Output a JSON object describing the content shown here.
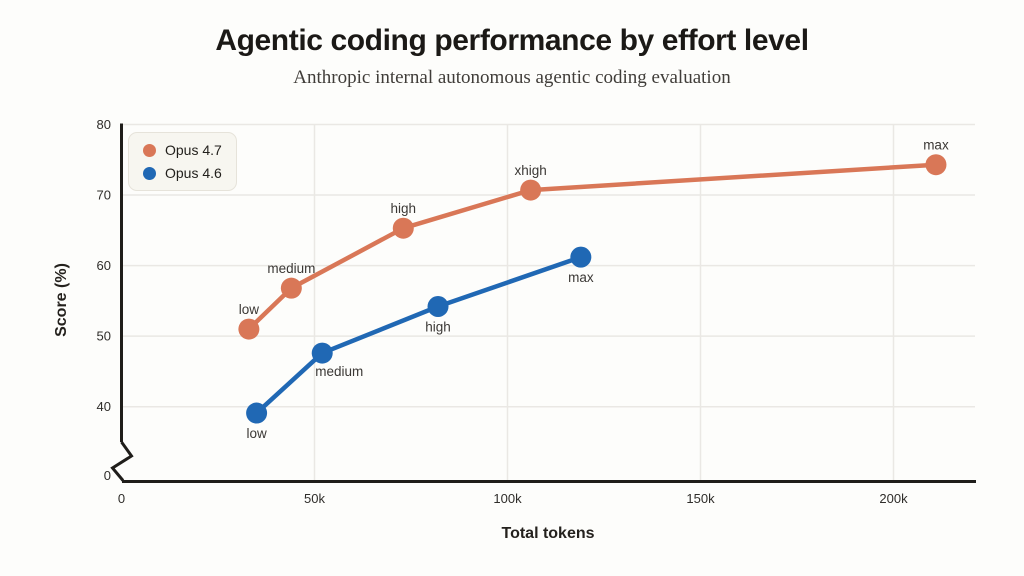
{
  "page": {
    "background": "#fdfdfb"
  },
  "chart_data": {
    "type": "line",
    "title": "Agentic coding performance by effort level",
    "subtitle": "Anthropic internal autonomous agentic coding evaluation",
    "xlabel": "Total tokens",
    "ylabel": "Score (%)",
    "grid": true,
    "legend_position": "top-left",
    "x_axis": {
      "min": 0,
      "max": 221000,
      "ticks": [
        {
          "value": 0,
          "label": "0"
        },
        {
          "value": 50000,
          "label": "50k"
        },
        {
          "value": 100000,
          "label": "100k"
        },
        {
          "value": 150000,
          "label": "150k"
        },
        {
          "value": 200000,
          "label": "200k"
        }
      ]
    },
    "y_axis": {
      "min": 0,
      "max": 80,
      "break_between": [
        0,
        40
      ],
      "ticks": [
        {
          "value": 80,
          "label": "80"
        },
        {
          "value": 70,
          "label": "70"
        },
        {
          "value": 60,
          "label": "60"
        },
        {
          "value": 50,
          "label": "50"
        },
        {
          "value": 40,
          "label": "40"
        },
        {
          "value": 0,
          "label": "0"
        }
      ]
    },
    "series": [
      {
        "name": "Opus 4.7",
        "color": "#d97757",
        "points": [
          {
            "x": 33000,
            "y": 51.0,
            "label": "low",
            "label_pos": "above"
          },
          {
            "x": 44000,
            "y": 56.8,
            "label": "medium",
            "label_pos": "above"
          },
          {
            "x": 73000,
            "y": 65.3,
            "label": "high",
            "label_pos": "above"
          },
          {
            "x": 106000,
            "y": 70.7,
            "label": "xhigh",
            "label_pos": "above"
          },
          {
            "x": 211000,
            "y": 74.3,
            "label": "max",
            "label_pos": "above"
          }
        ]
      },
      {
        "name": "Opus 4.6",
        "color": "#2068b4",
        "points": [
          {
            "x": 35000,
            "y": 39.1,
            "label": "low",
            "label_pos": "below"
          },
          {
            "x": 52000,
            "y": 47.6,
            "label": "medium",
            "label_pos": "below-right"
          },
          {
            "x": 82000,
            "y": 54.2,
            "label": "high",
            "label_pos": "below"
          },
          {
            "x": 119000,
            "y": 61.2,
            "label": "max",
            "label_pos": "below"
          }
        ]
      }
    ]
  }
}
